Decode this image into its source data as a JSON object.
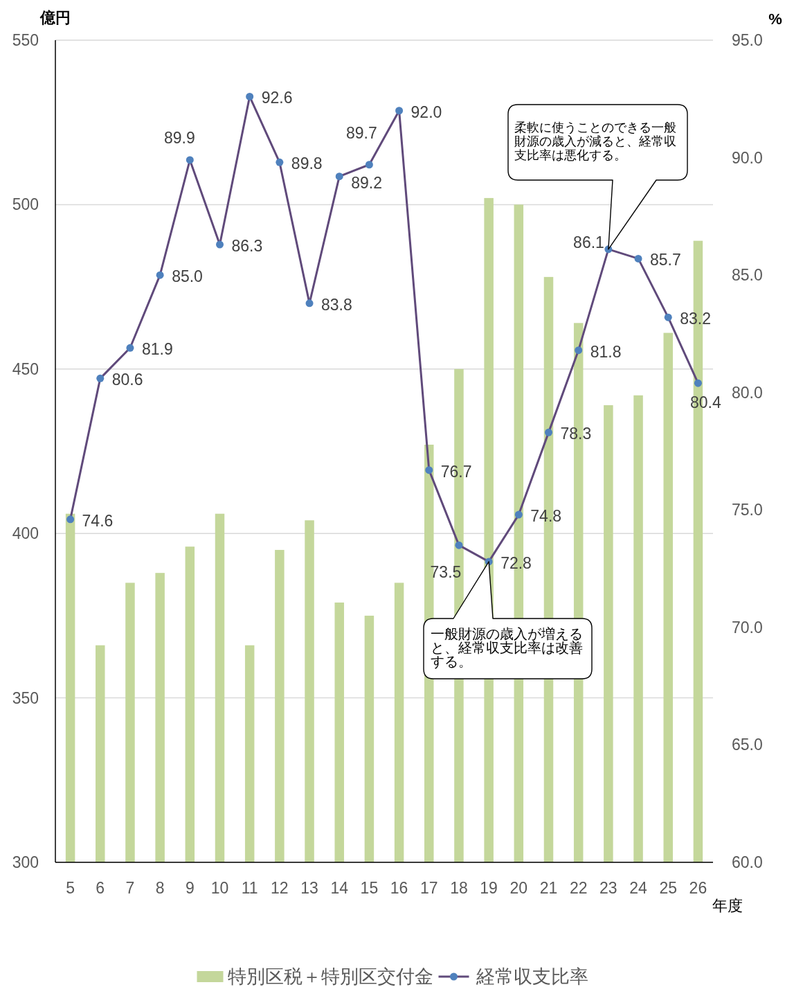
{
  "chart_data": {
    "type": "bar",
    "ylabel": "億円",
    "y2label": "%",
    "xlabel": "年度",
    "categories": [
      "5",
      "6",
      "7",
      "8",
      "9",
      "10",
      "11",
      "12",
      "13",
      "14",
      "15",
      "16",
      "17",
      "18",
      "19",
      "20",
      "21",
      "22",
      "23",
      "24",
      "25",
      "26"
    ],
    "series": [
      {
        "name": "特別区税＋特別区交付金",
        "color": "#c4d79b",
        "values": [
          406,
          366,
          385,
          388,
          396,
          406,
          366,
          395,
          404,
          379,
          375,
          385,
          427,
          450,
          502,
          500,
          478,
          464,
          439,
          442,
          461,
          489
        ]
      },
      {
        "name": "経常収支比率",
        "type": "line",
        "axis": "y2",
        "color": "#604a7b",
        "colors": [
          "#4f81bd",
          "#4f81bd",
          "#4f81bd",
          "#4f81bd",
          "#4f81bd",
          "#4f81bd",
          "#4f81bd",
          "#4f81bd",
          "#4f81bd",
          "#4f81bd",
          "#4f81bd",
          "#4f81bd",
          "#4f81bd",
          "#4f81bd",
          "#4f81bd",
          "#4f81bd",
          "#4f81bd",
          "#4f81bd",
          "#4f81bd",
          "#4f81bd",
          "#4f81bd",
          "#4f81bd"
        ],
        "values": [
          74.6,
          80.6,
          81.9,
          85.0,
          89.9,
          86.3,
          92.6,
          89.8,
          83.8,
          89.2,
          89.7,
          92.0,
          76.7,
          73.5,
          72.8,
          74.8,
          78.3,
          81.8,
          86.1,
          85.7,
          83.2,
          80.4
        ],
        "value_labels": [
          "74.6",
          "80.6",
          "81.9",
          "85.0",
          "89.9",
          "86.3",
          "92.6",
          "89.8",
          "83.8",
          "89.2",
          "89.7",
          "92.0",
          "76.7",
          "73.5",
          "72.8",
          "74.8",
          "78.3",
          "81.8",
          "86.1",
          "85.7",
          "83.2",
          "80.4"
        ]
      }
    ],
    "ylim": [
      300,
      550
    ],
    "yticks": [
      300,
      350,
      400,
      450,
      500,
      550
    ],
    "y2lim": [
      60,
      95
    ],
    "y2ticks": [
      {
        "value": 60,
        "label": "60.0"
      },
      {
        "value": 65,
        "label": "65.0"
      },
      {
        "value": 70,
        "label": "70.0"
      },
      {
        "value": 75,
        "label": "75.0"
      },
      {
        "value": 80,
        "label": "80.0"
      },
      {
        "value": 85,
        "label": "85.0"
      },
      {
        "value": 90,
        "label": "90.0"
      },
      {
        "value": 95,
        "label": "95.0"
      }
    ],
    "grid": "y",
    "legend": "bottom",
    "marker": "circle",
    "annotations": [
      "柔軟に使うことのできる一般財源の歳入が減ると、経常収支比率は悪化する。",
      "一般財源の歳入が増えると、経常収支比率は改善する。"
    ]
  }
}
